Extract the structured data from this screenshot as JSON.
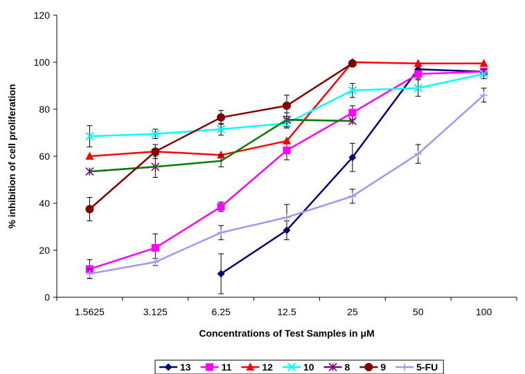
{
  "chart_data": {
    "type": "line",
    "title": "",
    "xlabel": "Concentrations of Test Samples in μM",
    "ylabel": "% inhibition of cell proliferation",
    "categories": [
      "1.5625",
      "3.125",
      "6.25",
      "12.5",
      "25",
      "50",
      "100"
    ],
    "y_ticks": [
      "0",
      "20",
      "40",
      "60",
      "80",
      "100",
      "120"
    ],
    "ylim": [
      0,
      120
    ],
    "grid": false,
    "legend_position": "bottom",
    "series": [
      {
        "name": "13",
        "color": "#000080",
        "marker": "diamond",
        "values": [
          null,
          null,
          10,
          28.5,
          59.5,
          97,
          96
        ],
        "errors": [
          null,
          null,
          8.5,
          4,
          6,
          1.5,
          1.5
        ]
      },
      {
        "name": "11",
        "color": "#ff00ff",
        "marker": "square",
        "values": [
          12,
          21,
          38.5,
          62.5,
          78.5,
          95,
          96
        ],
        "errors": [
          4,
          6,
          2,
          4,
          3,
          2,
          1.5
        ]
      },
      {
        "name": "12",
        "color": "#ff0000",
        "marker": "triangle",
        "values": [
          60,
          62,
          60.5,
          66.5,
          100,
          99.5,
          99.5
        ],
        "errors": [
          null,
          null,
          null,
          null,
          null,
          null,
          null
        ]
      },
      {
        "name": "10",
        "color": "#00ffff",
        "marker": "x",
        "values": [
          68.5,
          69.5,
          71.5,
          74,
          88,
          89,
          95
        ],
        "errors": [
          4.5,
          2,
          2.5,
          2,
          3,
          3.5,
          2
        ]
      },
      {
        "name": "8",
        "color": "#800080",
        "marker": "asterisk",
        "values": [
          53.5,
          55.5,
          null,
          75.5,
          75,
          null,
          null
        ],
        "errors": [
          null,
          4.5,
          null,
          3,
          null,
          null,
          null
        ]
      },
      {
        "name": "",
        "color": "#008000",
        "marker": "none",
        "values": [
          53.5,
          55.5,
          58,
          75.5,
          75,
          null,
          null
        ],
        "errors": [
          null,
          null,
          2.5,
          null,
          null,
          null,
          null
        ]
      },
      {
        "name": "9",
        "color": "#800000",
        "marker": "circle",
        "values": [
          37.5,
          62,
          76.5,
          81.5,
          99.5,
          null,
          null
        ],
        "errors": [
          5,
          3,
          3,
          4.5,
          null,
          null,
          null
        ]
      },
      {
        "name": "5-FU",
        "color": "#9999ff",
        "marker": "plus",
        "values": [
          10,
          15,
          27.5,
          34,
          43,
          61,
          86
        ],
        "errors": [
          2,
          1.5,
          3,
          5.5,
          3,
          4,
          3
        ]
      }
    ]
  }
}
